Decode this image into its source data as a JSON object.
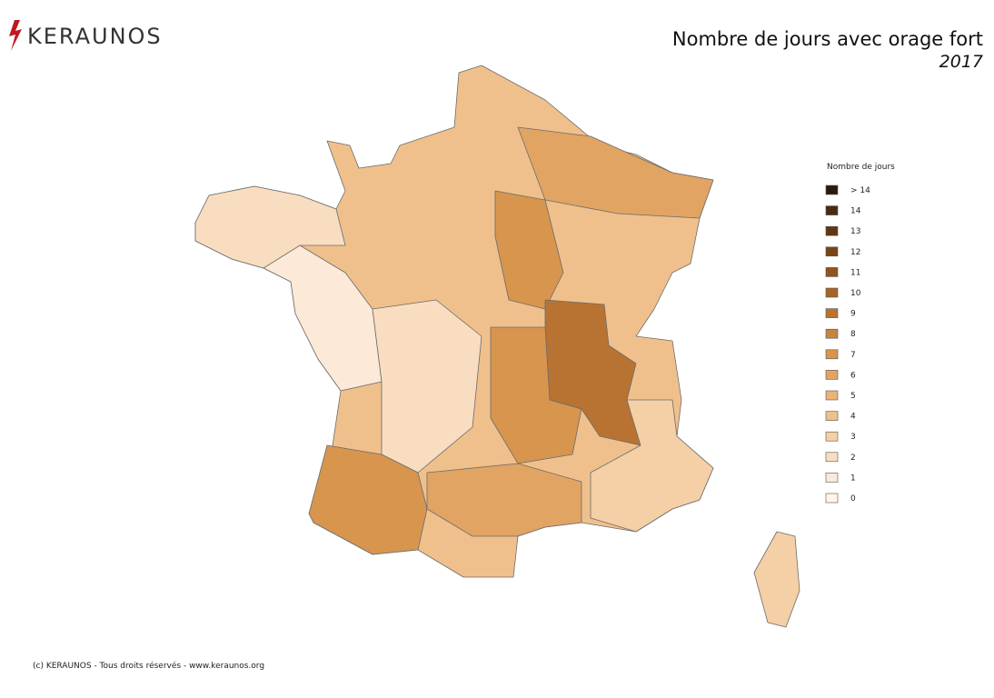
{
  "header": {
    "brand": "KERAUNOS",
    "title": "Nombre de jours avec orage fort",
    "subtitle": "2017"
  },
  "legend": {
    "title": "Nombre de jours",
    "items": [
      {
        "label": "> 14",
        "color": "#2b1a0c"
      },
      {
        "label": "14",
        "color": "#4a2a10"
      },
      {
        "label": "13",
        "color": "#633611"
      },
      {
        "label": "12",
        "color": "#7a4416"
      },
      {
        "label": "11",
        "color": "#92531d"
      },
      {
        "label": "10",
        "color": "#a86426"
      },
      {
        "label": "9",
        "color": "#b87332"
      },
      {
        "label": "8",
        "color": "#c8843e"
      },
      {
        "label": "7",
        "color": "#d7954e"
      },
      {
        "label": "6",
        "color": "#e1a462"
      },
      {
        "label": "5",
        "color": "#eab377"
      },
      {
        "label": "4",
        "color": "#f0c08c"
      },
      {
        "label": "3",
        "color": "#f5cfa5"
      },
      {
        "label": "2",
        "color": "#f9ddc0"
      },
      {
        "label": "1",
        "color": "#fce9d8"
      },
      {
        "label": "0",
        "color": "#fef5ee"
      }
    ]
  },
  "footer": {
    "credit": "(c) KERAUNOS - Tous droits réservés - www.keraunos.org"
  }
}
